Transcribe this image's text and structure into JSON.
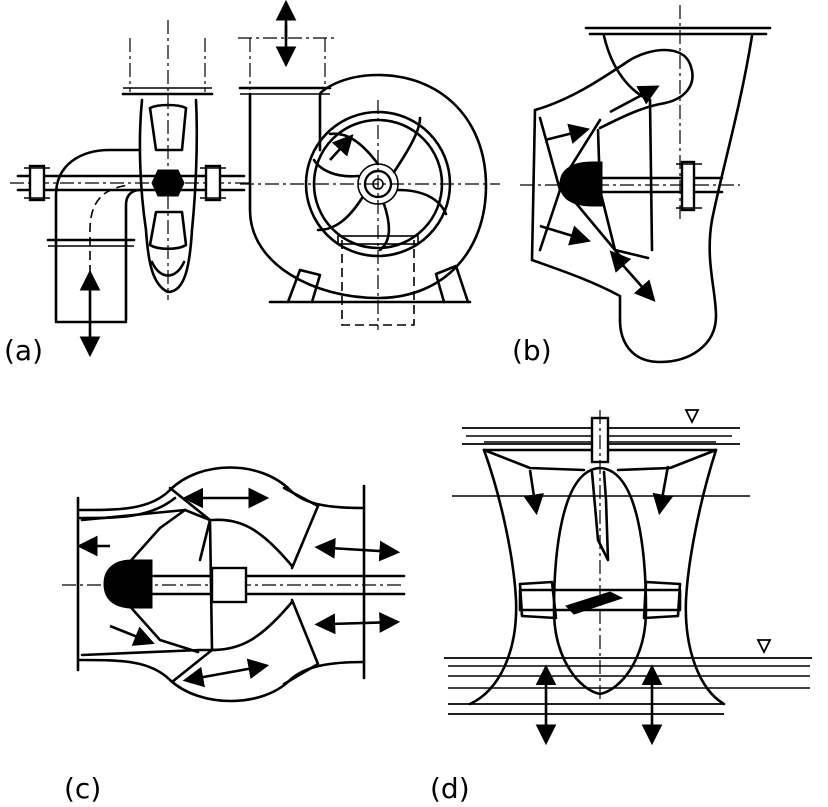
{
  "panels": [
    {
      "id": "a",
      "label": "(a)"
    },
    {
      "id": "b",
      "label": "(b)"
    },
    {
      "id": "c",
      "label": "(c)"
    },
    {
      "id": "d",
      "label": "(d)"
    }
  ],
  "icons": {
    "flow_arrow": "flow-arrow-icon",
    "water_level": "water-level-triangle-icon"
  }
}
